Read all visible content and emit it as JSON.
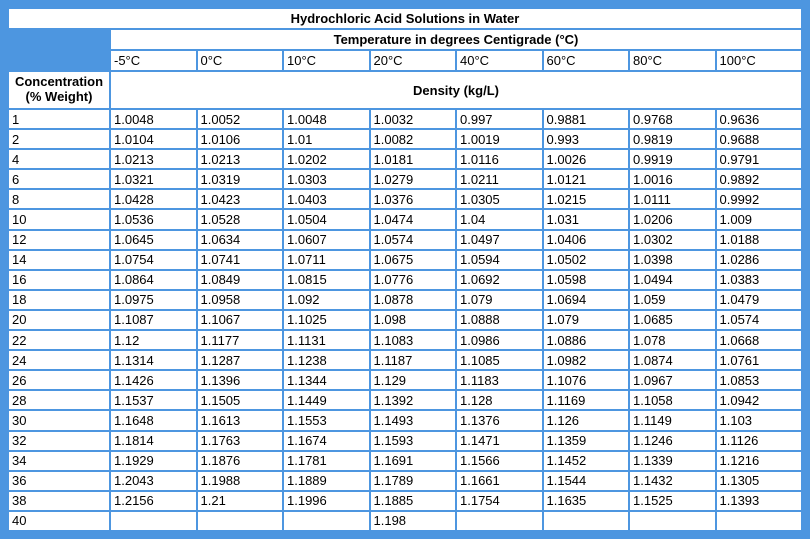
{
  "table": {
    "title": "Hydrochloric Acid Solutions in Water",
    "temperature_group_header": "Temperature in degrees Centigrade (°C)",
    "concentration_header": "Concentration (% Weight)",
    "density_group_header": "Density (kg/L)",
    "temperatures": [
      "-5°C",
      "0°C",
      "10°C",
      "20°C",
      "40°C",
      "60°C",
      "80°C",
      "100°C"
    ],
    "rows": [
      {
        "concentration": "1",
        "densities": [
          "1.0048",
          "1.0052",
          "1.0048",
          "1.0032",
          "0.997",
          "0.9881",
          "0.9768",
          "0.9636"
        ]
      },
      {
        "concentration": "2",
        "densities": [
          "1.0104",
          "1.0106",
          "1.01",
          "1.0082",
          "1.0019",
          "0.993",
          "0.9819",
          "0.9688"
        ]
      },
      {
        "concentration": "4",
        "densities": [
          "1.0213",
          "1.0213",
          "1.0202",
          "1.0181",
          "1.0116",
          "1.0026",
          "0.9919",
          "0.9791"
        ]
      },
      {
        "concentration": "6",
        "densities": [
          "1.0321",
          "1.0319",
          "1.0303",
          "1.0279",
          "1.0211",
          "1.0121",
          "1.0016",
          "0.9892"
        ]
      },
      {
        "concentration": "8",
        "densities": [
          "1.0428",
          "1.0423",
          "1.0403",
          "1.0376",
          "1.0305",
          "1.0215",
          "1.0111",
          "0.9992"
        ]
      },
      {
        "concentration": "10",
        "densities": [
          "1.0536",
          "1.0528",
          "1.0504",
          "1.0474",
          "1.04",
          "1.031",
          "1.0206",
          "1.009"
        ]
      },
      {
        "concentration": "12",
        "densities": [
          "1.0645",
          "1.0634",
          "1.0607",
          "1.0574",
          "1.0497",
          "1.0406",
          "1.0302",
          "1.0188"
        ]
      },
      {
        "concentration": "14",
        "densities": [
          "1.0754",
          "1.0741",
          "1.0711",
          "1.0675",
          "1.0594",
          "1.0502",
          "1.0398",
          "1.0286"
        ]
      },
      {
        "concentration": "16",
        "densities": [
          "1.0864",
          "1.0849",
          "1.0815",
          "1.0776",
          "1.0692",
          "1.0598",
          "1.0494",
          "1.0383"
        ]
      },
      {
        "concentration": "18",
        "densities": [
          "1.0975",
          "1.0958",
          "1.092",
          "1.0878",
          "1.079",
          "1.0694",
          "1.059",
          "1.0479"
        ]
      },
      {
        "concentration": "20",
        "densities": [
          "1.1087",
          "1.1067",
          "1.1025",
          "1.098",
          "1.0888",
          "1.079",
          "1.0685",
          "1.0574"
        ]
      },
      {
        "concentration": "22",
        "densities": [
          "1.12",
          "1.1177",
          "1.1131",
          "1.1083",
          "1.0986",
          "1.0886",
          "1.078",
          "1.0668"
        ]
      },
      {
        "concentration": "24",
        "densities": [
          "1.1314",
          "1.1287",
          "1.1238",
          "1.1187",
          "1.1085",
          "1.0982",
          "1.0874",
          "1.0761"
        ]
      },
      {
        "concentration": "26",
        "densities": [
          "1.1426",
          "1.1396",
          "1.1344",
          "1.129",
          "1.1183",
          "1.1076",
          "1.0967",
          "1.0853"
        ]
      },
      {
        "concentration": "28",
        "densities": [
          "1.1537",
          "1.1505",
          "1.1449",
          "1.1392",
          "1.128",
          "1.1169",
          "1.1058",
          "1.0942"
        ]
      },
      {
        "concentration": "30",
        "densities": [
          "1.1648",
          "1.1613",
          "1.1553",
          "1.1493",
          "1.1376",
          "1.126",
          "1.1149",
          "1.103"
        ]
      },
      {
        "concentration": "32",
        "densities": [
          "1.1814",
          "1.1763",
          "1.1674",
          "1.1593",
          "1.1471",
          "1.1359",
          "1.1246",
          "1.1126"
        ]
      },
      {
        "concentration": "34",
        "densities": [
          "1.1929",
          "1.1876",
          "1.1781",
          "1.1691",
          "1.1566",
          "1.1452",
          "1.1339",
          "1.1216"
        ]
      },
      {
        "concentration": "36",
        "densities": [
          "1.2043",
          "1.1988",
          "1.1889",
          "1.1789",
          "1.1661",
          "1.1544",
          "1.1432",
          "1.1305"
        ]
      },
      {
        "concentration": "38",
        "densities": [
          "1.2156",
          "1.21",
          "1.1996",
          "1.1885",
          "1.1754",
          "1.1635",
          "1.1525",
          "1.1393"
        ]
      },
      {
        "concentration": "40",
        "densities": [
          "",
          "",
          "",
          "1.198",
          "",
          "",
          "",
          ""
        ]
      }
    ]
  },
  "colors": {
    "accent_blue": "#4d96e0",
    "cell_background": "#ffffff",
    "text": "#000000"
  }
}
